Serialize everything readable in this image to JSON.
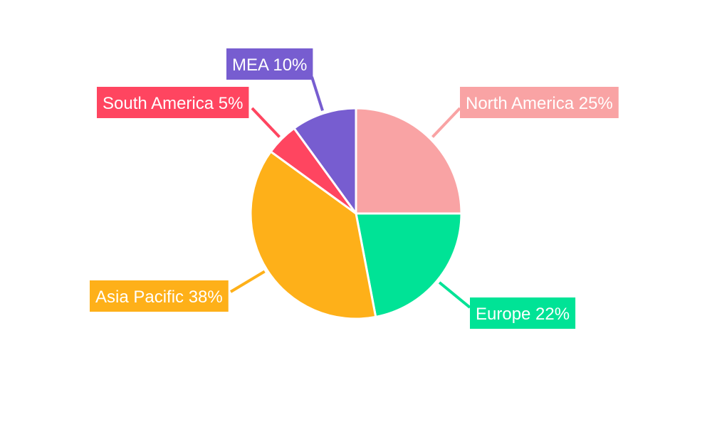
{
  "chart_data": {
    "type": "pie",
    "title": "",
    "categories": [
      "North America",
      "Europe",
      "Asia Pacific",
      "South America",
      "MEA"
    ],
    "values": [
      25,
      22,
      38,
      5,
      10
    ],
    "labels": [
      "North America 25%",
      "Europe 22%",
      "Asia Pacific 38%",
      "South America 5%",
      "MEA 10%"
    ],
    "colors": [
      "#F9A3A4",
      "#00E396",
      "#FEB019",
      "#FF4560",
      "#775DD0"
    ],
    "start_angle": "top",
    "direction": "clockwise",
    "legend": "none"
  }
}
